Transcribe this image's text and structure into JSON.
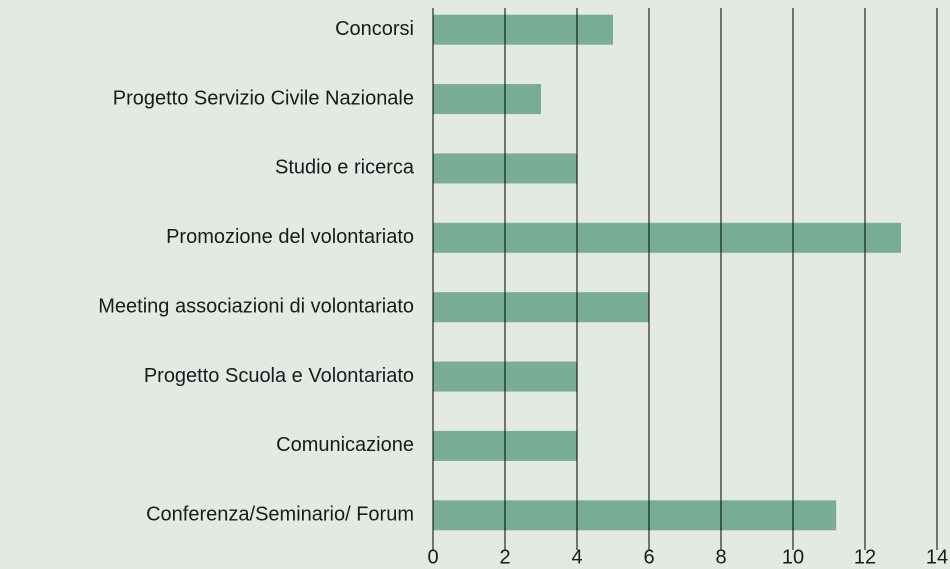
{
  "chart_data": {
    "type": "barh",
    "categories": [
      "Concorsi",
      "Progetto Servizio Civile Nazionale",
      "Studio e ricerca",
      "Promozione del volontariato",
      "Meeting associazioni di volontariato",
      "Progetto Scuola e Volontariato",
      "Comunicazione",
      "Conferenza/Seminario/ Forum"
    ],
    "values": [
      5,
      3,
      4,
      13,
      6,
      4,
      4,
      11.2
    ],
    "color": "#7aad98",
    "xlim": [
      0,
      14
    ],
    "xticks": [
      0,
      2,
      4,
      6,
      8,
      10,
      12,
      14
    ],
    "grid": true
  }
}
